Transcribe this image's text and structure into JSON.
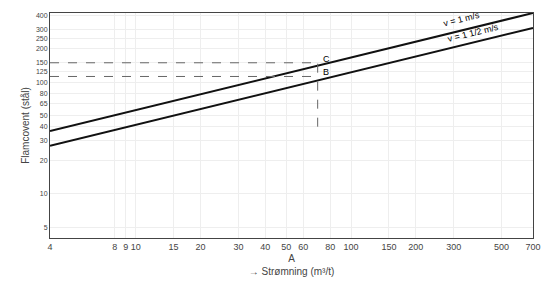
{
  "chart_data": {
    "type": "line",
    "xlabel": "A\n→ Strømning (m³/t)",
    "ylabel": "Flamcovent (stål)",
    "log": true,
    "grid": true,
    "xlim": [
      4,
      700
    ],
    "ylim": [
      4,
      420
    ],
    "xticks": [
      4,
      8,
      9,
      10,
      15,
      20,
      30,
      40,
      50,
      60,
      80,
      100,
      150,
      200,
      300,
      500,
      700
    ],
    "yticks": [
      5,
      10,
      20,
      30,
      40,
      50,
      65,
      80,
      100,
      125,
      150,
      200,
      250,
      300,
      400
    ],
    "series": [
      {
        "x": [
          4,
          700
        ],
        "values": [
          36.5,
          420
        ],
        "color": "#111111",
        "line_style": "solid"
      },
      {
        "x": [
          4,
          700
        ],
        "values": [
          27,
          308
        ],
        "color": "#111111",
        "line_style": "solid"
      },
      {
        "x": [
          4,
          70
        ],
        "values": [
          113,
          113
        ],
        "color": "#666666",
        "line_style": "dashed"
      },
      {
        "x": [
          4,
          70
        ],
        "values": [
          150,
          150
        ],
        "color": "#666666",
        "line_style": "dashed"
      },
      {
        "x": [
          70,
          70
        ],
        "values": [
          40,
          150
        ],
        "color": "#666666",
        "line_style": "dashed"
      }
    ],
    "annotations": [
      {
        "text": "B",
        "x": 70,
        "y": 113
      },
      {
        "text": "C",
        "x": 70,
        "y": 150
      }
    ],
    "line_labels": [
      {
        "text": "v = 1 m/s",
        "x": 260,
        "y": 290
      },
      {
        "text": "v = 1 1/2 m/s",
        "x": 270,
        "y": 210
      }
    ]
  }
}
